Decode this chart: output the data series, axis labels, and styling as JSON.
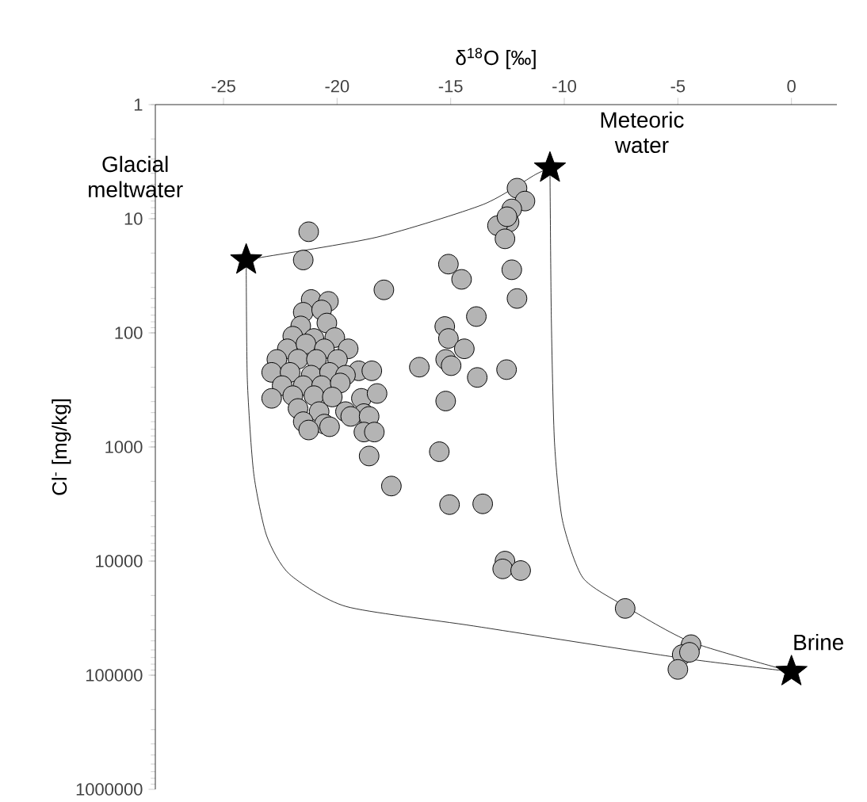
{
  "chart_data": {
    "type": "scatter",
    "xlabel": "δ$^{18}$O [‰]",
    "ylabel": "Cl$^{-}$ [mg/kg]",
    "xlim": [
      -28,
      2
    ],
    "xticks": [
      -25,
      -20,
      -15,
      -10,
      -5,
      0
    ],
    "ylim": [
      1000000,
      1
    ],
    "yticks": [
      1,
      10,
      100,
      1000,
      10000,
      100000,
      1000000
    ],
    "log": "y",
    "series": [
      {
        "marker": "circle",
        "color": "#b4b4b4",
        "x": [
          -21.25,
          -21.49,
          -17.94,
          -15.1,
          -14.52,
          -12.31,
          -12.08,
          -13.87,
          -15.26,
          -15.1,
          -14.4,
          -15.22,
          -16.38,
          -14.98,
          -12.54,
          -13.83,
          -15.22,
          -15.5,
          -17.61,
          -15.05,
          -13.59,
          -12.08,
          -11.73,
          -12.31,
          -12.43,
          -12.94,
          -12.61,
          -12.52,
          -12.61,
          -12.71,
          -11.92,
          -7.32,
          -4.42,
          -4.81,
          -4.49,
          -5.0,
          -21.14,
          -20.38,
          -21.49,
          -20.68,
          -21.6,
          -20.45,
          -21.95,
          -21.02,
          -20.1,
          -22.19,
          -21.37,
          -20.56,
          -19.51,
          -22.65,
          -21.72,
          -20.91,
          -19.98,
          -19.05,
          -18.47,
          -22.88,
          -22.07,
          -21.14,
          -20.33,
          -19.63,
          -22.42,
          -21.49,
          -20.68,
          -19.86,
          -22.88,
          -21.95,
          -21.02,
          -20.21,
          -18.93,
          -18.24,
          -21.72,
          -20.79,
          -19.63,
          -18.82,
          -21.49,
          -20.56,
          -19.4,
          -18.59,
          -21.25,
          -20.33,
          -18.82,
          -18.36,
          -18.59
        ],
        "values": [
          13,
          23,
          42,
          25,
          34,
          28,
          50,
          72,
          88,
          112,
          138,
          171,
          200,
          194,
          210,
          246,
          396,
          1100,
          2200,
          3200,
          3150,
          5.4,
          7.0,
          8.2,
          10.7,
          11.5,
          15,
          9.6,
          10000,
          11700,
          12100,
          26000,
          54000,
          66000,
          63000,
          89000,
          51,
          53,
          66,
          63,
          87,
          82,
          107,
          112,
          110,
          138,
          125,
          138,
          138,
          171,
          170,
          171,
          171,
          215,
          215,
          222,
          222,
          235,
          222,
          235,
          290,
          290,
          290,
          275,
          375,
          355,
          355,
          365,
          375,
          340,
          460,
          490,
          490,
          510,
          600,
          630,
          540,
          540,
          710,
          665,
          740,
          740,
          1200
        ]
      },
      {
        "type": "line",
        "marker": "none",
        "color": "#000000",
        "x": [
          -24.0,
          -23.45,
          -18.24,
          -13.57,
          -11.27,
          -10.63
        ],
        "values": [
          23,
          22,
          14.5,
          7.5,
          4.1,
          3.6
        ]
      },
      {
        "type": "line",
        "marker": "none",
        "color": "#000000",
        "x": [
          -24.0,
          -23.95,
          -23.67,
          -23.1,
          -22.1,
          -19.6,
          -14.0,
          -5.0,
          0
        ],
        "values": [
          23,
          260,
          1700,
          6000,
          13000,
          25000,
          37000,
          70000,
          93000
        ]
      },
      {
        "type": "line",
        "marker": "none",
        "color": "#000000",
        "x": [
          -10.63,
          -10.57,
          -10.43,
          -10.08,
          -9.18,
          -7.3,
          -4.44,
          0
        ],
        "values": [
          3.6,
          74,
          910,
          4400,
          14000,
          25000,
          51000,
          93000
        ]
      },
      {
        "marker": "star",
        "color": "#000000",
        "x": [
          -24.0,
          -10.63,
          0
        ],
        "values": [
          23,
          3.6,
          93000
        ]
      }
    ],
    "annotations": [
      "Glacial meltwater",
      "Meteoric water",
      "Brine"
    ]
  }
}
